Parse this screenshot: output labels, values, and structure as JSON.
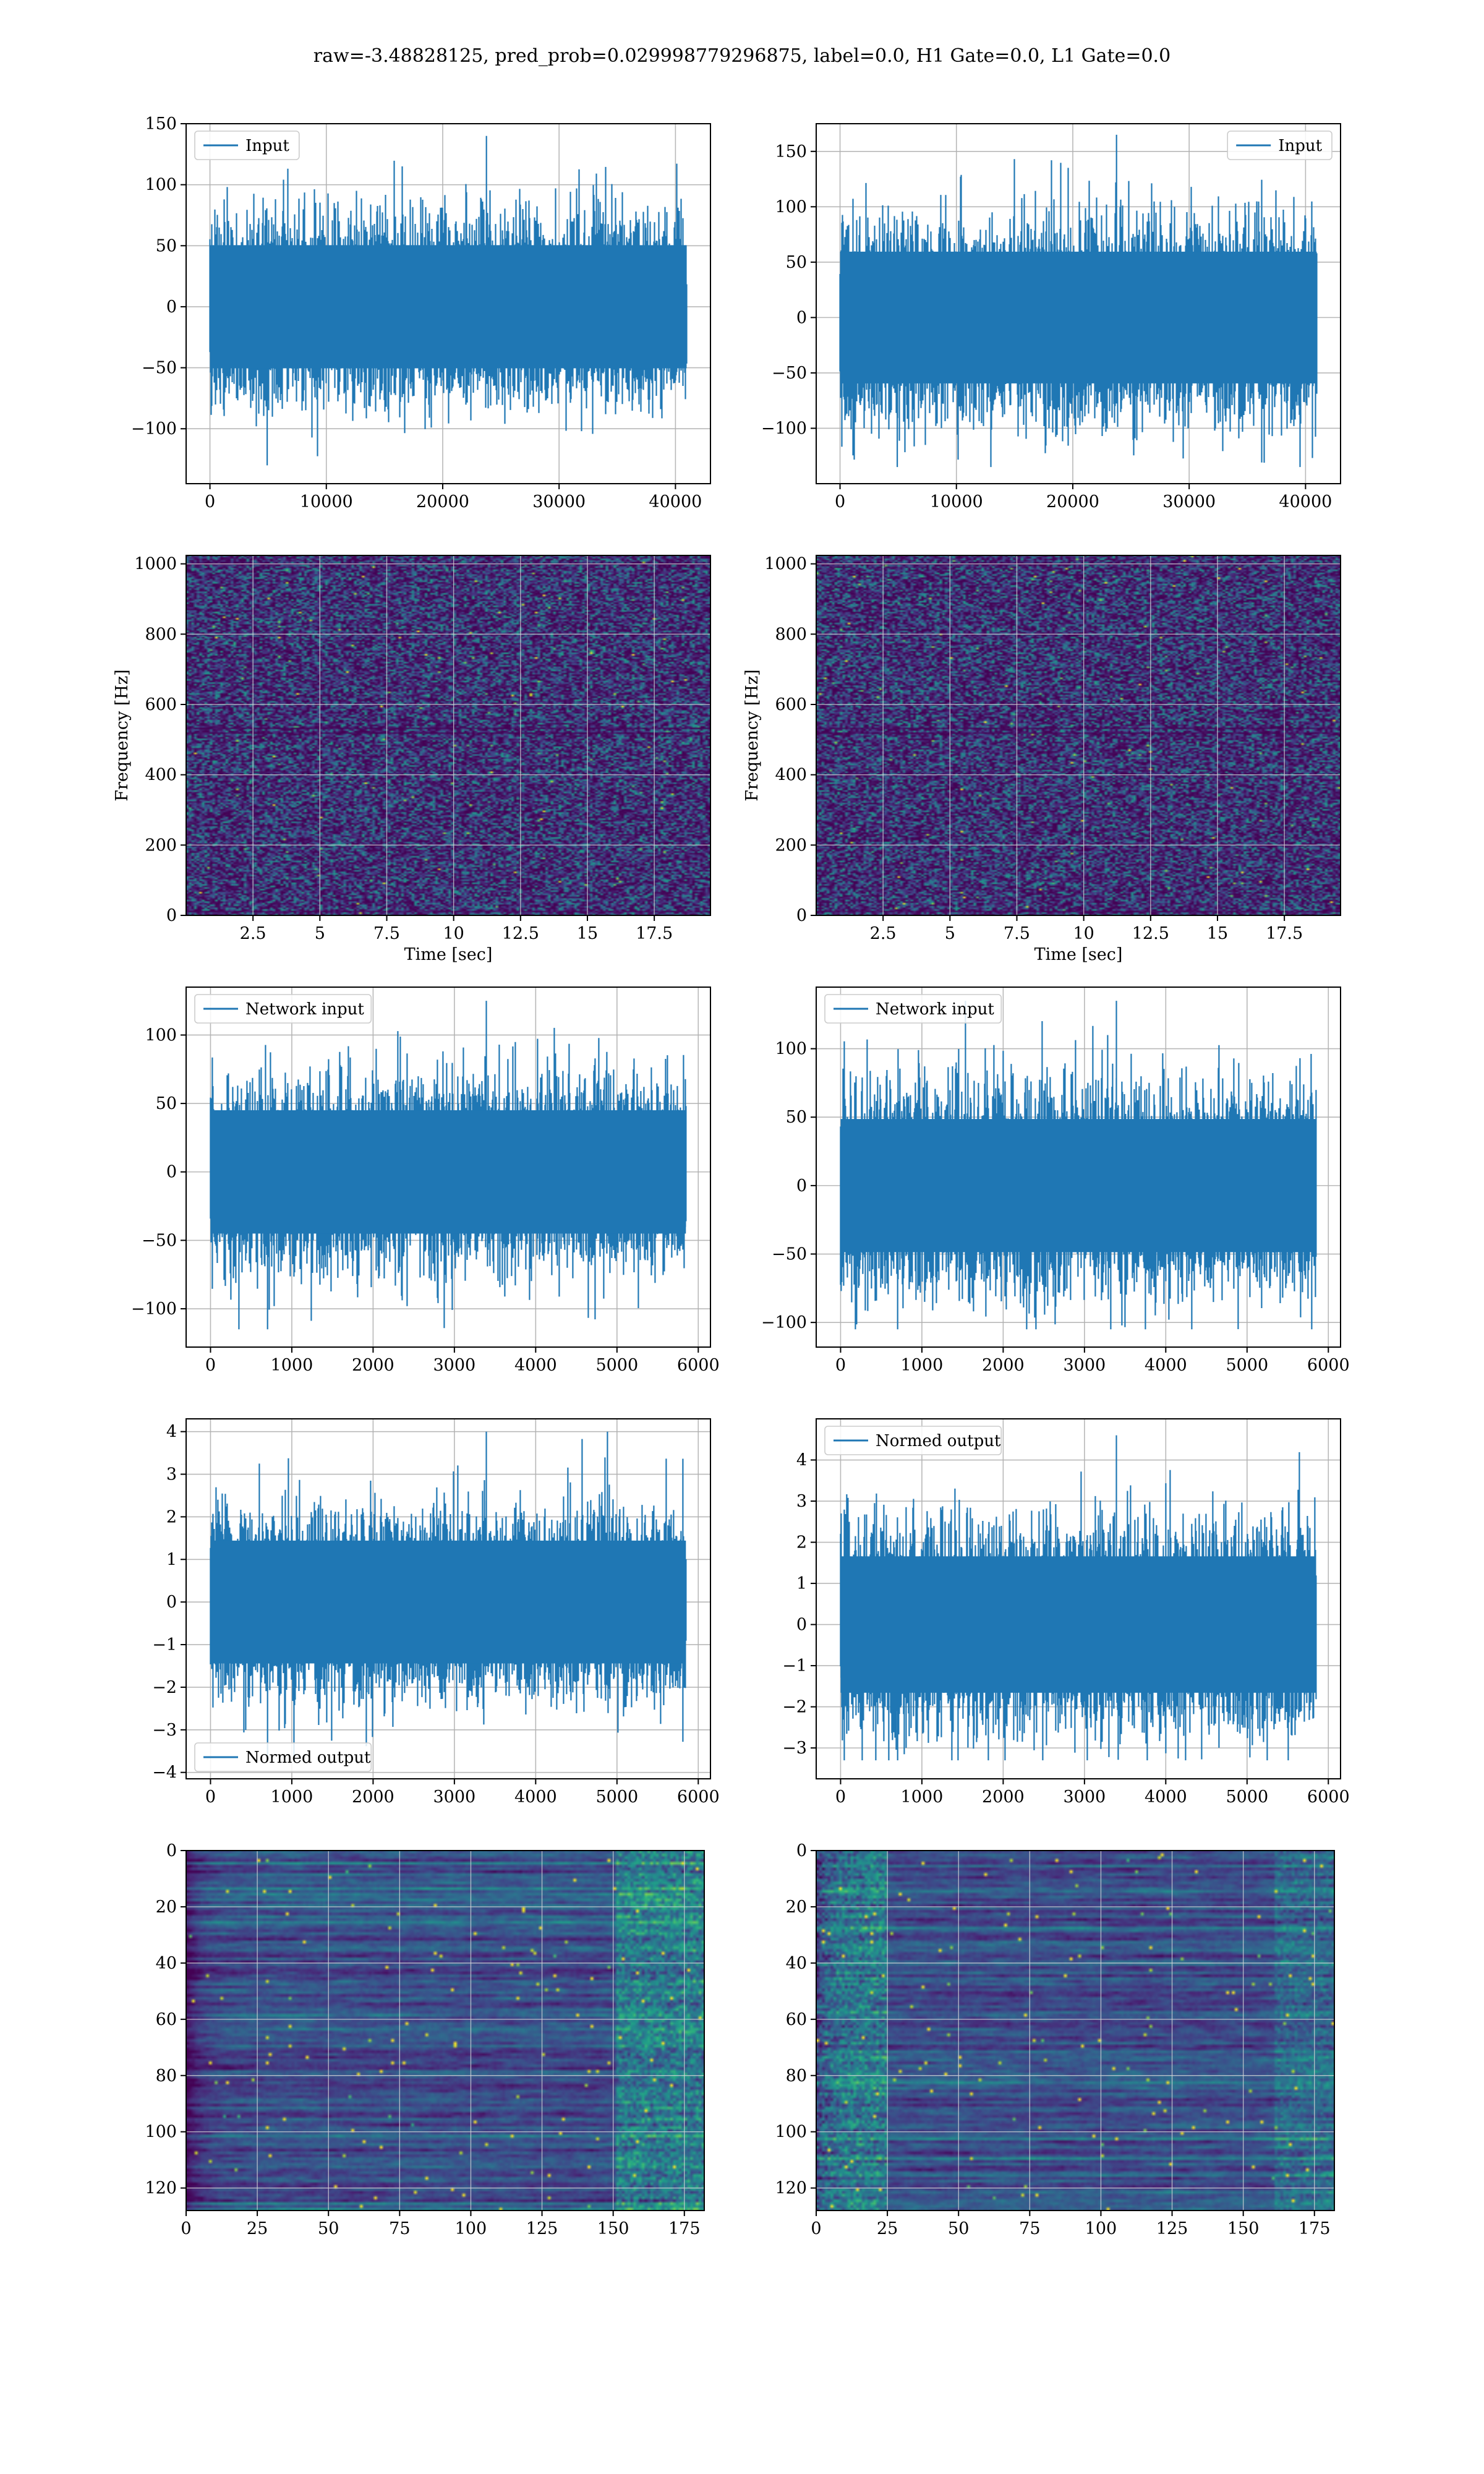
{
  "title": "raw=-3.48828125, pred_prob=0.029998779296875, label=0.0, H1 Gate=0.0, L1 Gate=0.0",
  "colors": {
    "line": "#1f77b4",
    "grid": "#b0b0b0",
    "viridis": [
      "#440154",
      "#482878",
      "#3e4989",
      "#31688e",
      "#26828e",
      "#1f9e89",
      "#35b779",
      "#6ece58",
      "#b5de2b",
      "#fde725"
    ]
  },
  "chart_data": [
    {
      "type": "line",
      "id": "input-h1",
      "legend": "Input",
      "legend_loc": "upper left",
      "x_range": [
        0,
        40960
      ],
      "y_range": [
        -130,
        140
      ],
      "n_points": 40960,
      "xlim": [
        -2048,
        43008
      ],
      "ylim": [
        -145,
        150
      ],
      "xticks": [
        0,
        10000,
        20000,
        30000,
        40000
      ],
      "yticks": [
        -100,
        -50,
        0,
        50,
        100,
        150
      ],
      "xlabel": "",
      "ylabel": "",
      "grid": true
    },
    {
      "type": "line",
      "id": "input-l1",
      "legend": "Input",
      "legend_loc": "upper right",
      "x_range": [
        0,
        40960
      ],
      "y_range": [
        -135,
        165
      ],
      "n_points": 40960,
      "xlim": [
        -2048,
        43008
      ],
      "ylim": [
        -150,
        175
      ],
      "xticks": [
        0,
        10000,
        20000,
        30000,
        40000
      ],
      "yticks": [
        -100,
        -50,
        0,
        50,
        100,
        150
      ],
      "xlabel": "",
      "ylabel": "",
      "grid": true
    },
    {
      "type": "heatmap",
      "id": "spectrogram-h1",
      "xlim": [
        0,
        19.6
      ],
      "ylim": [
        0,
        1024
      ],
      "xticks": [
        2.5,
        5.0,
        7.5,
        10.0,
        12.5,
        15.0,
        17.5
      ],
      "yticks": [
        0,
        200,
        400,
        600,
        800,
        1000
      ],
      "xlabel": "Time [sec]",
      "ylabel": "Frequency [Hz]",
      "grid": true
    },
    {
      "type": "heatmap",
      "id": "spectrogram-l1",
      "xlim": [
        0,
        19.6
      ],
      "ylim": [
        0,
        1024
      ],
      "xticks": [
        2.5,
        5.0,
        7.5,
        10.0,
        12.5,
        15.0,
        17.5
      ],
      "yticks": [
        0,
        200,
        400,
        600,
        800,
        1000
      ],
      "xlabel": "Time [sec]",
      "ylabel": "Frequency [Hz]",
      "grid": true
    },
    {
      "type": "line",
      "id": "network-input-h1",
      "legend": "Network input",
      "legend_loc": "upper left",
      "x_range": [
        0,
        5848
      ],
      "y_range": [
        -115,
        125
      ],
      "n_points": 5848,
      "xlim": [
        -300,
        6150
      ],
      "ylim": [
        -128,
        135
      ],
      "xticks": [
        0,
        1000,
        2000,
        3000,
        4000,
        5000,
        6000
      ],
      "yticks": [
        -100,
        -50,
        0,
        50,
        100
      ],
      "xlabel": "",
      "ylabel": "",
      "grid": true
    },
    {
      "type": "line",
      "id": "network-input-l1",
      "legend": "Network input",
      "legend_loc": "upper left",
      "x_range": [
        0,
        5848
      ],
      "y_range": [
        -105,
        135
      ],
      "n_points": 5848,
      "xlim": [
        -300,
        6150
      ],
      "ylim": [
        -118,
        145
      ],
      "xticks": [
        0,
        1000,
        2000,
        3000,
        4000,
        5000,
        6000
      ],
      "yticks": [
        -100,
        -50,
        0,
        50,
        100
      ],
      "xlabel": "",
      "ylabel": "",
      "grid": true
    },
    {
      "type": "line",
      "id": "normed-output-h1",
      "legend": "Normed output",
      "legend_loc": "lower left",
      "x_range": [
        0,
        5848
      ],
      "y_range": [
        -3.7,
        4.0
      ],
      "n_points": 5848,
      "xlim": [
        -300,
        6150
      ],
      "ylim": [
        -4.15,
        4.3
      ],
      "xticks": [
        0,
        1000,
        2000,
        3000,
        4000,
        5000,
        6000
      ],
      "yticks": [
        -4,
        -3,
        -2,
        -1,
        0,
        1,
        2,
        3,
        4
      ],
      "xlabel": "",
      "ylabel": "",
      "grid": true
    },
    {
      "type": "line",
      "id": "normed-output-l1",
      "legend": "Normed output",
      "legend_loc": "upper left",
      "x_range": [
        0,
        5848
      ],
      "y_range": [
        -3.3,
        4.6
      ],
      "n_points": 5848,
      "xlim": [
        -300,
        6150
      ],
      "ylim": [
        -3.75,
        5.0
      ],
      "xticks": [
        0,
        1000,
        2000,
        3000,
        4000,
        5000,
        6000
      ],
      "yticks": [
        -3,
        -2,
        -1,
        0,
        1,
        2,
        3,
        4
      ],
      "xlabel": "",
      "ylabel": "",
      "grid": true
    },
    {
      "type": "heatmap",
      "id": "feature-map-h1",
      "xlim": [
        0,
        182
      ],
      "ylim": [
        0,
        128
      ],
      "y_inverted": true,
      "xticks": [
        0,
        25,
        50,
        75,
        100,
        125,
        150,
        175
      ],
      "yticks": [
        0,
        20,
        40,
        60,
        80,
        100,
        120
      ],
      "xlabel": "",
      "ylabel": "",
      "grid": true
    },
    {
      "type": "heatmap",
      "id": "feature-map-l1",
      "xlim": [
        0,
        182
      ],
      "ylim": [
        0,
        128
      ],
      "y_inverted": true,
      "xticks": [
        0,
        25,
        50,
        75,
        100,
        125,
        150,
        175
      ],
      "yticks": [
        0,
        20,
        40,
        60,
        80,
        100,
        120
      ],
      "xlabel": "",
      "ylabel": "",
      "grid": true
    }
  ]
}
